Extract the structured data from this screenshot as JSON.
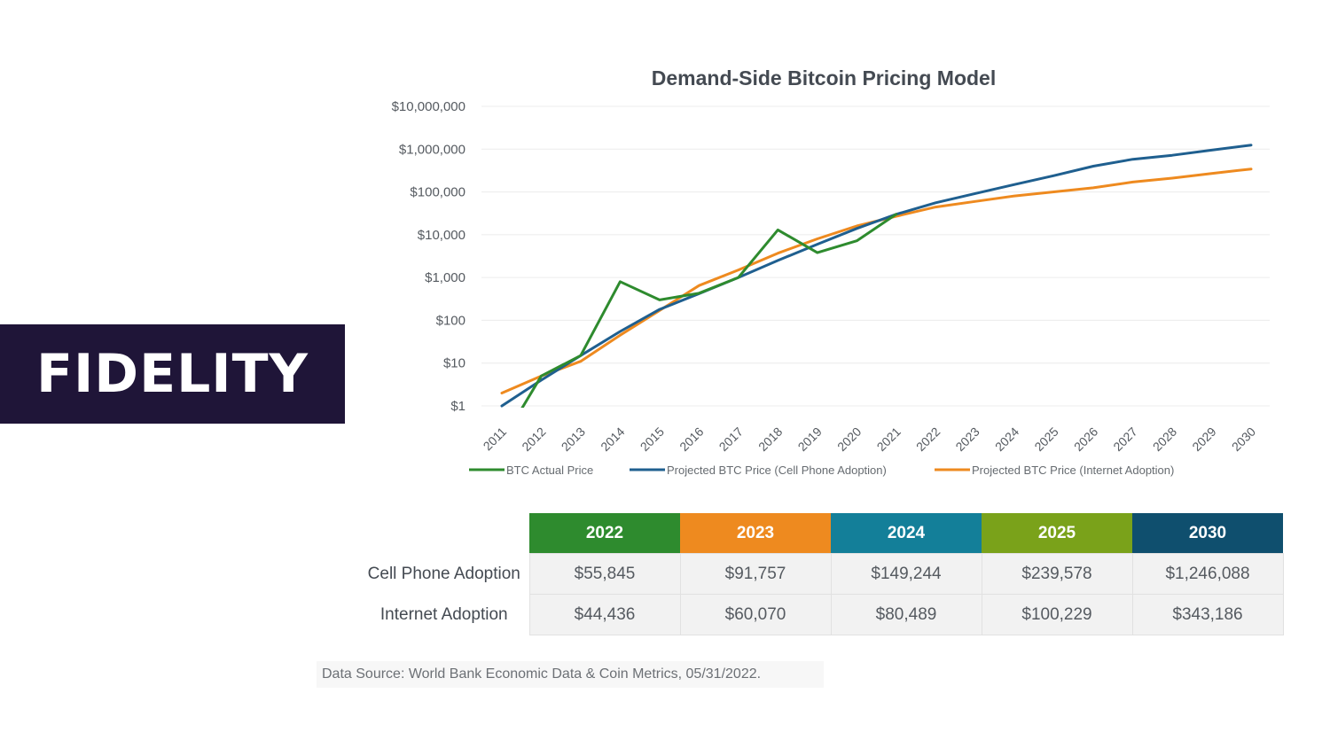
{
  "brand": {
    "label": "FIDELITY"
  },
  "chart_data": {
    "type": "line",
    "title": "Demand-Side Bitcoin Pricing Model",
    "xlabel": "",
    "ylabel": "",
    "y_scale": "log",
    "ylim": [
      1,
      10000000
    ],
    "y_ticks": [
      1,
      10,
      100,
      1000,
      10000,
      100000,
      1000000,
      10000000
    ],
    "y_tick_labels": [
      "$1",
      "$10",
      "$100",
      "$1,000",
      "$10,000",
      "$100,000",
      "$1,000,000",
      "$10,000,000"
    ],
    "categories": [
      "2011",
      "2012",
      "2013",
      "2014",
      "2015",
      "2016",
      "2017",
      "2018",
      "2019",
      "2020",
      "2021",
      "2022",
      "2023",
      "2024",
      "2025",
      "2026",
      "2027",
      "2028",
      "2029",
      "2030"
    ],
    "grid": true,
    "legend_position": "bottom",
    "series": [
      {
        "name": "BTC Actual Price",
        "color": "#2e8b2e",
        "x": [
          2011.35,
          2012,
          2013,
          2014,
          2015,
          2016,
          2017,
          2018,
          2019,
          2020,
          2021
        ],
        "values": [
          0.5,
          5,
          15,
          800,
          300,
          430,
          1000,
          13000,
          3800,
          7200,
          30000
        ]
      },
      {
        "name": "Projected BTC Price (Cell Phone Adoption)",
        "color": "#1f5f8f",
        "x": [
          2011,
          2012,
          2013,
          2014,
          2015,
          2016,
          2017,
          2018,
          2019,
          2020,
          2021,
          2022,
          2023,
          2024,
          2025,
          2026,
          2027,
          2028,
          2029,
          2030
        ],
        "values": [
          1,
          4,
          15,
          55,
          180,
          420,
          1000,
          2500,
          6000,
          14000,
          30000,
          55845,
          91757,
          149244,
          239578,
          400000,
          580000,
          720000,
          950000,
          1246088
        ]
      },
      {
        "name": "Projected BTC Price (Internet Adoption)",
        "color": "#ee8a1f",
        "x": [
          2011,
          2012,
          2013,
          2014,
          2015,
          2016,
          2017,
          2018,
          2019,
          2020,
          2021,
          2022,
          2023,
          2024,
          2025,
          2026,
          2027,
          2028,
          2029,
          2030
        ],
        "values": [
          2,
          5,
          11,
          45,
          170,
          650,
          1500,
          3700,
          8000,
          16000,
          27000,
          44436,
          60070,
          80489,
          100229,
          125000,
          170000,
          210000,
          270000,
          343186
        ]
      }
    ]
  },
  "table": {
    "columns": [
      {
        "label": "2022",
        "color": "#2e8b2e"
      },
      {
        "label": "2023",
        "color": "#ee8a1f"
      },
      {
        "label": "2024",
        "color": "#137f99"
      },
      {
        "label": "2025",
        "color": "#7aa21a"
      },
      {
        "label": "2030",
        "color": "#0f4f6e"
      }
    ],
    "rows": [
      {
        "label": "Cell Phone Adoption",
        "values": [
          "$55,845",
          "$91,757",
          "$149,244",
          "$239,578",
          "$1,246,088"
        ]
      },
      {
        "label": "Internet Adoption",
        "values": [
          "$44,436",
          "$60,070",
          "$80,489",
          "$100,229",
          "$343,186"
        ]
      }
    ]
  },
  "source_note": "Data Source: World Bank Economic Data & Coin Metrics, 05/31/2022."
}
